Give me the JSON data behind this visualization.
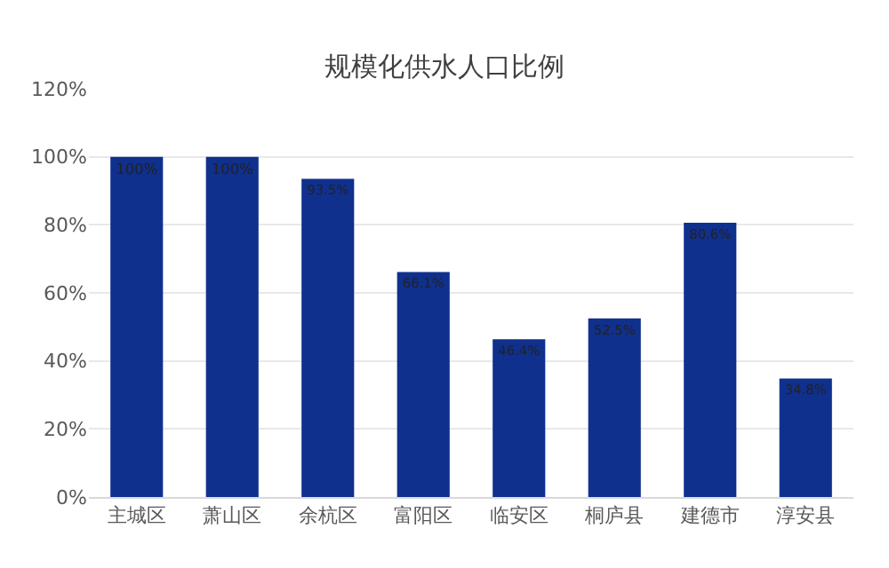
{
  "chart_data": {
    "type": "bar",
    "title": "规模化供水人口比例",
    "categories": [
      "主城区",
      "萧山区",
      "余杭区",
      "富阳区",
      "临安区",
      "桐庐县",
      "建德市",
      "淳安县"
    ],
    "values": [
      100,
      100,
      93.5,
      66.1,
      46.4,
      52.5,
      80.6,
      34.8
    ],
    "value_labels": [
      "100%",
      "100%",
      "93.5%",
      "66.1%",
      "46.4%",
      "52.5%",
      "80.6%",
      "34.8%"
    ],
    "color": "#10308e",
    "ylim": [
      0,
      120
    ],
    "yticks": [
      {
        "value": 0,
        "label": "0%"
      },
      {
        "value": 20,
        "label": "20%"
      },
      {
        "value": 40,
        "label": "40%"
      },
      {
        "value": 60,
        "label": "60%"
      },
      {
        "value": 80,
        "label": "80%"
      },
      {
        "value": 100,
        "label": "100%"
      },
      {
        "value": 120,
        "label": "120%"
      }
    ],
    "grid": "y",
    "legend": false
  }
}
